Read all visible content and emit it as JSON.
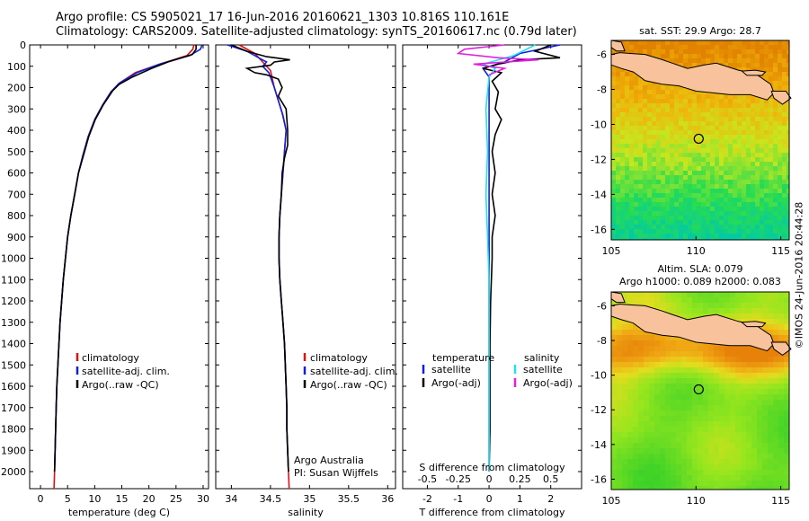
{
  "header": {
    "line1": "Argo profile: CS 5905021_17 16-Jun-2016 20160621_1303 10.816S 110.161E",
    "line2": "Climatology: CARS2009. Satellite-adjusted climatology: synTS_20160617.nc (0.79d later)"
  },
  "credit": "©IMOS 24-Jun-2016 20:44:28",
  "colors": {
    "climatology": "#e01010",
    "satellite": "#1020e0",
    "argo": "#000000",
    "sal_satellite": "#20e0f0",
    "sal_argo": "#e020e0"
  },
  "chart_data": [
    {
      "type": "line",
      "xlabel": "temperature (deg C)",
      "ylabel": "",
      "xlim": [
        -2,
        31
      ],
      "ylim": [
        2080,
        0
      ],
      "xticks": [
        0,
        5,
        10,
        15,
        20,
        25,
        30
      ],
      "yticks": [
        0,
        100,
        200,
        300,
        400,
        500,
        600,
        700,
        800,
        900,
        1000,
        1100,
        1200,
        1300,
        1400,
        1500,
        1600,
        1700,
        1800,
        1900,
        2000
      ],
      "legend": [
        "climatology",
        "satellite-adj. clim.",
        "Argo(..raw -QC)"
      ],
      "series": [
        {
          "name": "climatology",
          "color": "#e01010",
          "points": [
            [
              28.3,
              0
            ],
            [
              28.1,
              20
            ],
            [
              27.0,
              50
            ],
            [
              22.0,
              90
            ],
            [
              17.5,
              130
            ],
            [
              14.5,
              180
            ],
            [
              13.0,
              220
            ],
            [
              11.5,
              280
            ],
            [
              10.0,
              350
            ],
            [
              8.8,
              430
            ],
            [
              7.8,
              520
            ],
            [
              7.0,
              600
            ],
            [
              6.3,
              700
            ],
            [
              5.6,
              800
            ],
            [
              5.0,
              900
            ],
            [
              4.6,
              1000
            ],
            [
              4.2,
              1100
            ],
            [
              3.9,
              1200
            ],
            [
              3.6,
              1300
            ],
            [
              3.4,
              1400
            ],
            [
              3.2,
              1500
            ],
            [
              3.0,
              1600
            ],
            [
              2.9,
              1700
            ],
            [
              2.8,
              1800
            ],
            [
              2.7,
              1900
            ],
            [
              2.6,
              2000
            ],
            [
              2.5,
              2080
            ]
          ]
        },
        {
          "name": "satellite-adj. clim.",
          "color": "#1020e0",
          "points": [
            [
              29.8,
              0
            ],
            [
              29.5,
              20
            ],
            [
              27.5,
              50
            ],
            [
              22.0,
              90
            ],
            [
              17.8,
              130
            ],
            [
              14.5,
              180
            ],
            [
              13.0,
              220
            ],
            [
              11.5,
              280
            ],
            [
              10.0,
              350
            ],
            [
              8.8,
              430
            ],
            [
              7.8,
              520
            ],
            [
              7.0,
              600
            ],
            [
              6.3,
              700
            ],
            [
              5.6,
              800
            ],
            [
              5.0,
              900
            ],
            [
              4.6,
              1000
            ],
            [
              4.2,
              1100
            ],
            [
              3.9,
              1200
            ],
            [
              3.6,
              1300
            ],
            [
              3.4,
              1400
            ],
            [
              3.2,
              1500
            ],
            [
              3.0,
              1600
            ],
            [
              2.9,
              1700
            ],
            [
              2.8,
              1800
            ],
            [
              2.7,
              1900
            ],
            [
              2.6,
              2000
            ]
          ]
        },
        {
          "name": "Argo(..raw -QC)",
          "color": "#000000",
          "points": [
            [
              28.7,
              0
            ],
            [
              28.7,
              20
            ],
            [
              28.0,
              45
            ],
            [
              23.5,
              80
            ],
            [
              20.5,
              110
            ],
            [
              17.0,
              150
            ],
            [
              14.5,
              185
            ],
            [
              13.3,
              215
            ],
            [
              11.6,
              280
            ],
            [
              10.1,
              350
            ],
            [
              8.9,
              430
            ],
            [
              7.9,
              520
            ],
            [
              7.0,
              600
            ],
            [
              6.3,
              700
            ],
            [
              5.6,
              800
            ],
            [
              5.0,
              900
            ],
            [
              4.6,
              1000
            ],
            [
              4.2,
              1100
            ],
            [
              3.9,
              1200
            ],
            [
              3.6,
              1300
            ],
            [
              3.4,
              1400
            ],
            [
              3.2,
              1500
            ],
            [
              3.0,
              1600
            ],
            [
              2.9,
              1700
            ],
            [
              2.8,
              1800
            ],
            [
              2.7,
              1900
            ],
            [
              2.6,
              2000
            ]
          ]
        }
      ]
    },
    {
      "type": "line",
      "xlabel": "salinity",
      "ylabel": "",
      "xlim": [
        33.8,
        36.1
      ],
      "ylim": [
        2080,
        0
      ],
      "xticks": [
        34,
        34.5,
        35,
        35.5,
        36
      ],
      "legend": [
        "climatology",
        "satellite-adj. clim.",
        "Argo(..raw -QC)"
      ],
      "annotations": [
        "Argo Australia",
        "PI: Susan Wijffels"
      ],
      "series": [
        {
          "name": "climatology",
          "color": "#e01010",
          "points": [
            [
              34.1,
              0
            ],
            [
              34.3,
              40
            ],
            [
              34.4,
              80
            ],
            [
              34.5,
              120
            ],
            [
              34.55,
              200
            ],
            [
              34.6,
              260
            ],
            [
              34.65,
              320
            ],
            [
              34.7,
              400
            ],
            [
              34.68,
              500
            ],
            [
              34.66,
              600
            ],
            [
              34.64,
              700
            ],
            [
              34.62,
              800
            ],
            [
              34.61,
              900
            ],
            [
              34.61,
              1000
            ],
            [
              34.62,
              1100
            ],
            [
              34.64,
              1200
            ],
            [
              34.66,
              1300
            ],
            [
              34.68,
              1400
            ],
            [
              34.69,
              1500
            ],
            [
              34.7,
              1600
            ],
            [
              34.71,
              1700
            ],
            [
              34.71,
              1800
            ],
            [
              34.72,
              1900
            ],
            [
              34.73,
              2000
            ],
            [
              34.74,
              2080
            ]
          ]
        },
        {
          "name": "satellite-adj. clim.",
          "color": "#1020e0",
          "points": [
            [
              33.95,
              0
            ],
            [
              34.2,
              30
            ],
            [
              34.35,
              60
            ],
            [
              34.45,
              80
            ],
            [
              34.4,
              100
            ],
            [
              34.48,
              130
            ],
            [
              34.55,
              200
            ],
            [
              34.6,
              260
            ],
            [
              34.66,
              330
            ],
            [
              34.7,
              400
            ],
            [
              34.68,
              500
            ],
            [
              34.66,
              600
            ],
            [
              34.64,
              700
            ],
            [
              34.62,
              800
            ],
            [
              34.61,
              900
            ],
            [
              34.61,
              1000
            ],
            [
              34.62,
              1100
            ],
            [
              34.64,
              1200
            ],
            [
              34.66,
              1300
            ],
            [
              34.68,
              1400
            ],
            [
              34.69,
              1500
            ],
            [
              34.7,
              1600
            ],
            [
              34.71,
              1700
            ],
            [
              34.71,
              1800
            ],
            [
              34.72,
              1900
            ],
            [
              34.73,
              2000
            ]
          ]
        },
        {
          "name": "Argo(..raw -QC)",
          "color": "#000000",
          "points": [
            [
              34.0,
              0
            ],
            [
              34.2,
              30
            ],
            [
              34.45,
              55
            ],
            [
              34.75,
              70
            ],
            [
              34.55,
              80
            ],
            [
              34.5,
              95
            ],
            [
              34.2,
              110
            ],
            [
              34.3,
              130
            ],
            [
              34.45,
              140
            ],
            [
              34.6,
              160
            ],
            [
              34.65,
              200
            ],
            [
              34.6,
              240
            ],
            [
              34.7,
              300
            ],
            [
              34.72,
              400
            ],
            [
              34.72,
              470
            ],
            [
              34.68,
              530
            ],
            [
              34.65,
              600
            ],
            [
              34.64,
              700
            ],
            [
              34.62,
              800
            ],
            [
              34.61,
              900
            ],
            [
              34.61,
              1000
            ],
            [
              34.62,
              1100
            ],
            [
              34.64,
              1200
            ],
            [
              34.66,
              1300
            ],
            [
              34.68,
              1400
            ],
            [
              34.69,
              1500
            ],
            [
              34.7,
              1600
            ],
            [
              34.71,
              1700
            ],
            [
              34.71,
              1800
            ],
            [
              34.72,
              1900
            ],
            [
              34.73,
              2000
            ]
          ]
        }
      ]
    },
    {
      "type": "line",
      "xlabel": "T difference from climatology",
      "title_bottom_s": "S difference from climatology",
      "xlim": [
        -2.8,
        3.0
      ],
      "ylim": [
        2080,
        0
      ],
      "xticks": [
        -2,
        -1,
        0,
        1,
        2
      ],
      "xticklabels_s": [
        "-0.5",
        "-0.25",
        "0",
        "0.25",
        "0.5"
      ],
      "legend": [
        "temperature",
        "satellite",
        "Argo(-adj)",
        "salinity",
        "satellite",
        "Argo(-adj)"
      ],
      "series": [
        {
          "name": "temperature satellite",
          "color": "#1020e0",
          "points": [
            [
              2.3,
              0
            ],
            [
              1.0,
              40
            ],
            [
              0.5,
              80
            ],
            [
              -0.2,
              110
            ],
            [
              0.0,
              150
            ],
            [
              0.0,
              200
            ],
            [
              0.0,
              300
            ],
            [
              0.0,
              400
            ],
            [
              0.0,
              600
            ],
            [
              0.0,
              800
            ],
            [
              0.0,
              1000
            ],
            [
              0.0,
              1200
            ],
            [
              0.0,
              1400
            ],
            [
              0.0,
              1600
            ],
            [
              0.0,
              1800
            ],
            [
              0.0,
              2000
            ]
          ]
        },
        {
          "name": "temperature Argo(-adj)",
          "color": "#000000",
          "points": [
            [
              2.0,
              0
            ],
            [
              1.5,
              30
            ],
            [
              2.3,
              60
            ],
            [
              1.0,
              70
            ],
            [
              0.3,
              90
            ],
            [
              -0.2,
              110
            ],
            [
              0.4,
              130
            ],
            [
              0.1,
              170
            ],
            [
              0.3,
              220
            ],
            [
              0.2,
              300
            ],
            [
              0.4,
              350
            ],
            [
              0.2,
              420
            ],
            [
              0.1,
              500
            ],
            [
              0.2,
              600
            ],
            [
              0.1,
              700
            ],
            [
              0.2,
              800
            ],
            [
              0.1,
              900
            ],
            [
              0.1,
              1000
            ],
            [
              0.05,
              1200
            ],
            [
              0.03,
              1400
            ],
            [
              0.03,
              1600
            ],
            [
              0.03,
              1800
            ],
            [
              0.0,
              2000
            ]
          ]
        },
        {
          "name": "salinity satellite",
          "color": "#20e0f0",
          "points": [
            [
              1.5,
              0
            ],
            [
              0.8,
              50
            ],
            [
              -0.2,
              90
            ],
            [
              0.2,
              110
            ],
            [
              0.0,
              150
            ],
            [
              -0.1,
              300
            ],
            [
              -0.05,
              500
            ],
            [
              -0.1,
              700
            ],
            [
              -0.05,
              900
            ],
            [
              0.0,
              1100
            ],
            [
              0.0,
              1300
            ],
            [
              0.0,
              1500
            ],
            [
              0.0,
              1700
            ],
            [
              0.0,
              1900
            ],
            [
              0.0,
              2000
            ]
          ]
        },
        {
          "name": "salinity Argo(-adj)",
          "color": "#e020e0",
          "points": [
            [
              0.5,
              0
            ],
            [
              -0.8,
              20
            ],
            [
              -1.0,
              40
            ],
            [
              0.3,
              60
            ],
            [
              1.6,
              70
            ],
            [
              -0.5,
              90
            ],
            [
              0.5,
              110
            ],
            [
              0.0,
              140
            ]
          ]
        }
      ]
    },
    {
      "type": "heatmap",
      "title": "sat. SST: 29.9 Argo: 28.7",
      "xlim": [
        105,
        115.5
      ],
      "ylim": [
        -16.6,
        -5.2
      ],
      "xticks": [
        105,
        110,
        115
      ],
      "yticks": [
        -6,
        -8,
        -10,
        -12,
        -14,
        -16
      ],
      "marker": [
        110.16,
        -10.82
      ]
    },
    {
      "type": "heatmap",
      "title": "Altim. SLA: 0.079",
      "subtitle": "Argo h1000: 0.089 h2000: 0.083",
      "xlim": [
        105,
        115.5
      ],
      "ylim": [
        -16.6,
        -5.2
      ],
      "xticks": [
        105,
        110,
        115
      ],
      "yticks": [
        -6,
        -8,
        -10,
        -12,
        -14,
        -16
      ],
      "marker": [
        110.16,
        -10.82
      ]
    }
  ]
}
